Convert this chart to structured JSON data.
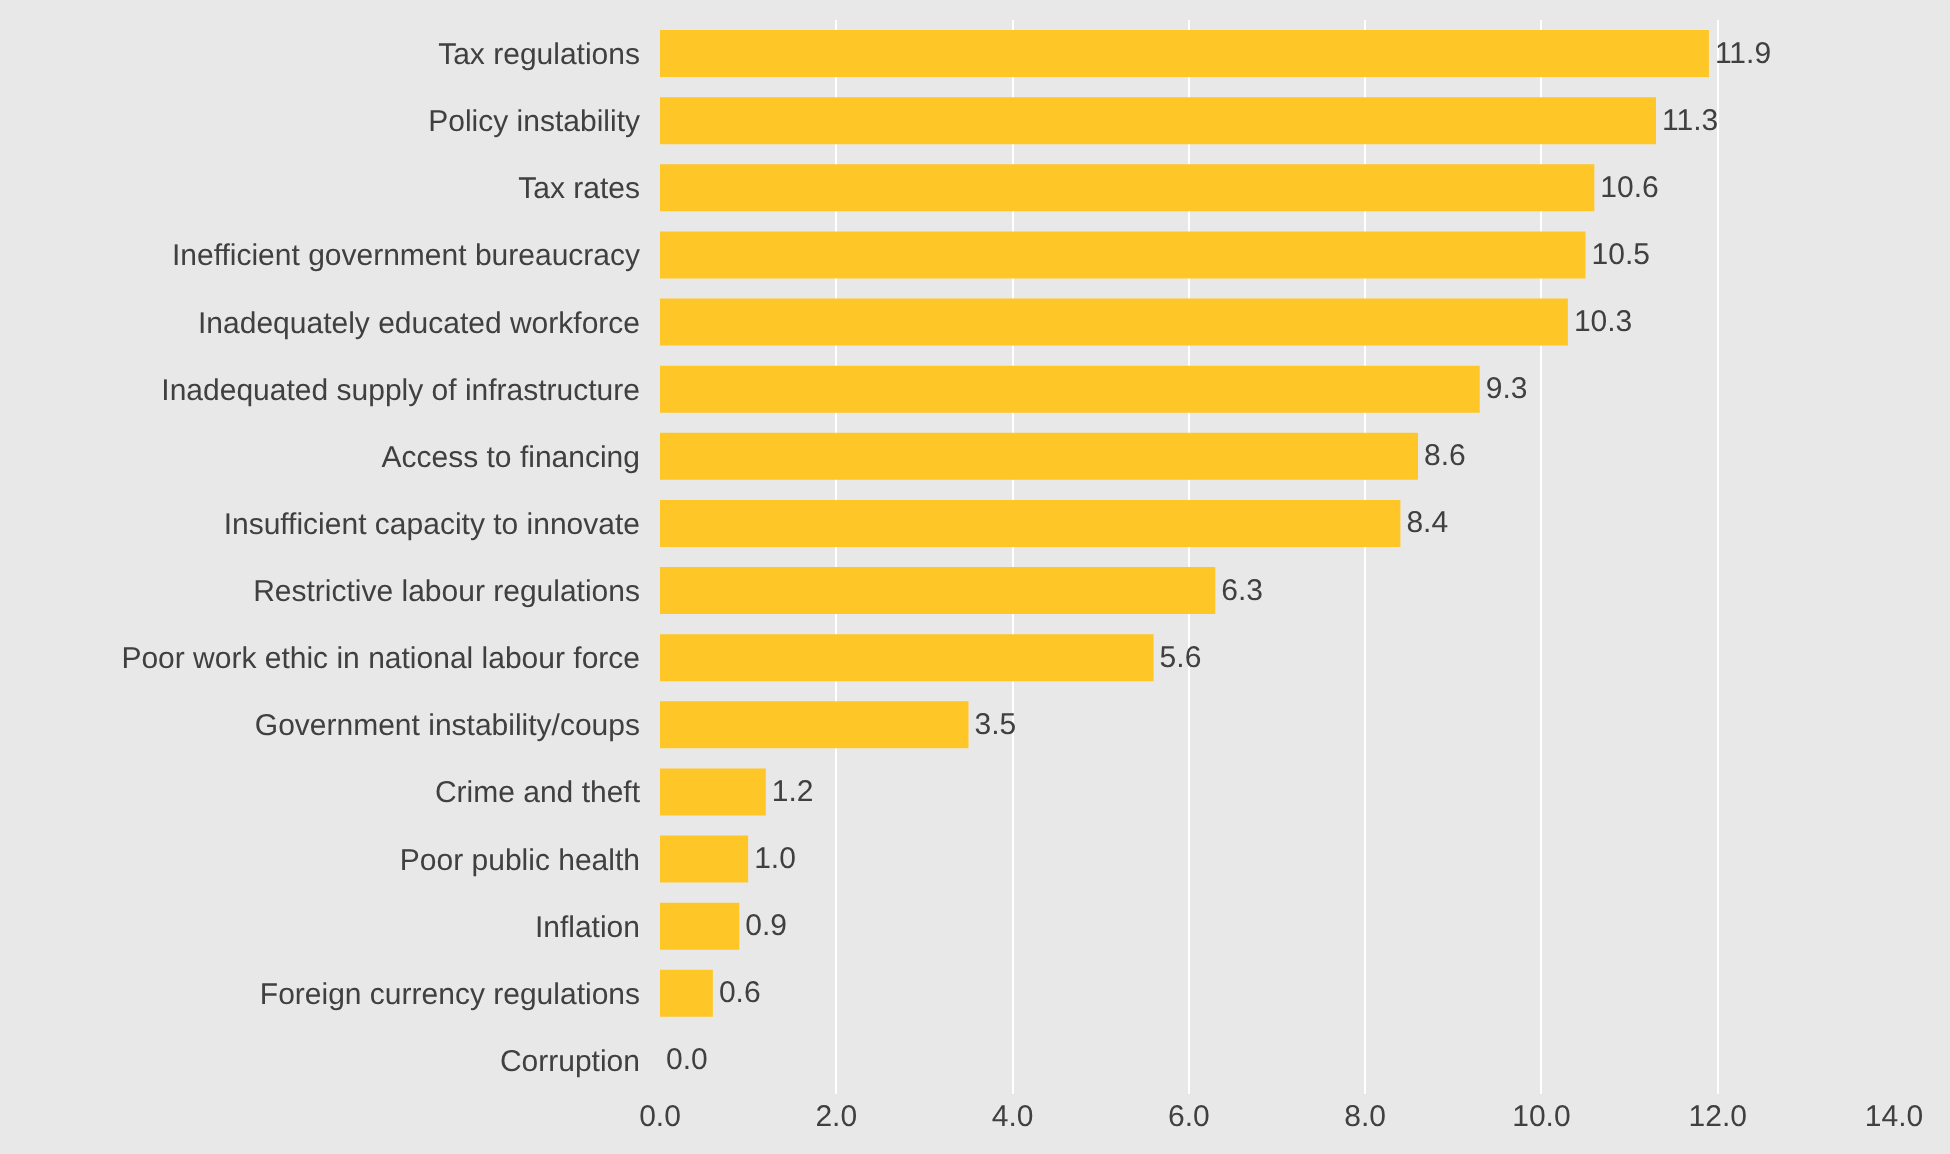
{
  "chart_data": {
    "type": "bar",
    "orientation": "horizontal",
    "categories": [
      "Tax regulations",
      "Policy instability",
      "Tax rates",
      "Inefficient government bureaucracy",
      "Inadequately educated workforce",
      "Inadequated supply of infrastructure",
      "Access to financing",
      "Insufficient capacity to innovate",
      "Restrictive labour regulations",
      "Poor work ethic in national labour force",
      "Government instability/coups",
      "Crime and theft",
      "Poor public health",
      "Inflation",
      "Foreign currency regulations",
      "Corruption"
    ],
    "values": [
      11.9,
      11.3,
      10.6,
      10.5,
      10.3,
      9.3,
      8.6,
      8.4,
      6.3,
      5.6,
      3.5,
      1.2,
      1.0,
      0.9,
      0.6,
      0.0
    ],
    "value_labels": [
      "11.9",
      "11.3",
      "10.6",
      "10.5",
      "10.3",
      "9.3",
      "8.6",
      "8.4",
      "6.3",
      "5.6",
      "3.5",
      "1.2",
      "1.0",
      "0.9",
      "0.6",
      "0.0"
    ],
    "color": "#ffc627",
    "xlim": [
      0,
      14
    ],
    "xticks": [
      {
        "value": 0,
        "label": "0.0"
      },
      {
        "value": 2,
        "label": "2.0"
      },
      {
        "value": 4,
        "label": "4.0"
      },
      {
        "value": 6,
        "label": "6.0"
      },
      {
        "value": 8,
        "label": "8.0"
      },
      {
        "value": 10,
        "label": "10.0"
      },
      {
        "value": 12,
        "label": "12.0"
      },
      {
        "value": 14,
        "label": "14.0"
      }
    ],
    "grid": "x",
    "legend": false
  }
}
